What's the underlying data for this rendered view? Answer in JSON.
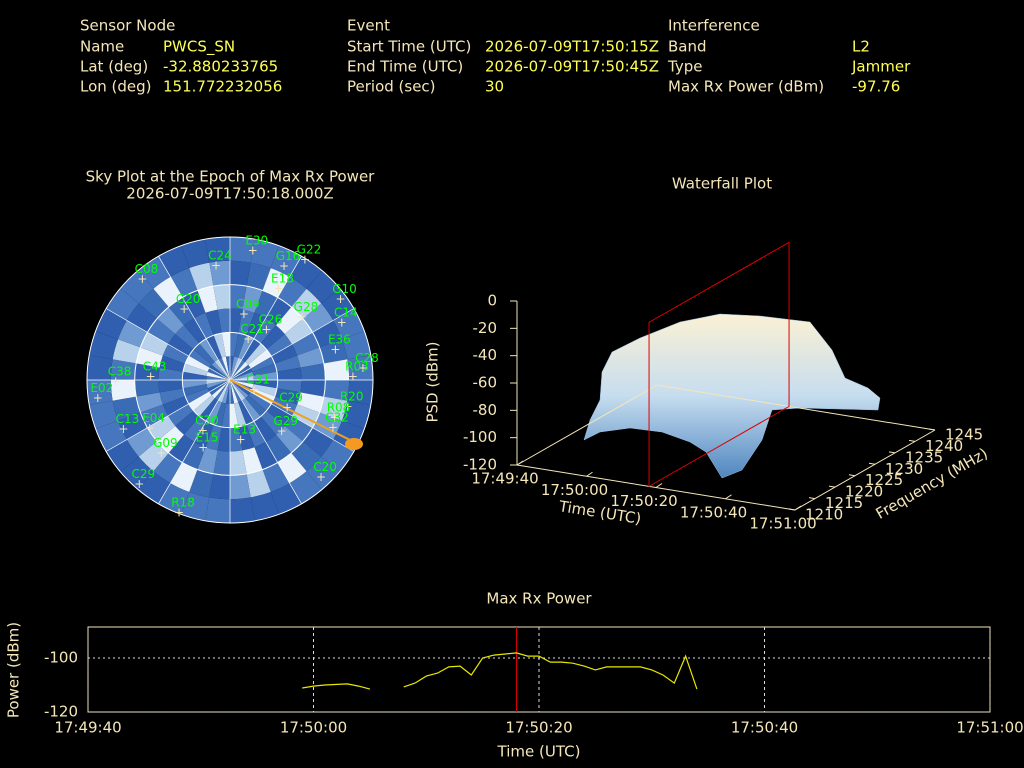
{
  "header": {
    "sensor_node": {
      "title": "Sensor Node",
      "rows": [
        {
          "label": "Name",
          "value": "PWCS_SN"
        },
        {
          "label": "Lat (deg)",
          "value": -32.880233765
        },
        {
          "label": "Lon (deg)",
          "value": 151.772232056
        }
      ]
    },
    "event": {
      "title": "Event",
      "rows": [
        {
          "label": "Start Time (UTC)",
          "value": "2026-07-09T17:50:15Z"
        },
        {
          "label": "End Time (UTC)",
          "value": "2026-07-09T17:50:45Z"
        },
        {
          "label": "Period (sec)",
          "value": 30
        }
      ]
    },
    "interference": {
      "title": "Interference",
      "rows": [
        {
          "label": "Band",
          "value": "L2"
        },
        {
          "label": "Type",
          "value": "Jammer"
        },
        {
          "label": "Max Rx Power (dBm)",
          "value": -97.76
        }
      ]
    }
  },
  "chart_data": [
    {
      "type": "skyplot",
      "title": "Sky Plot at the Epoch of Max Rx Power",
      "subtitle": "2026-07-09T17:50:18.000Z",
      "color": "#00ff00",
      "satellites": [
        {
          "name": "E30",
          "az": 10,
          "el": 7.5
        },
        {
          "name": "G22",
          "az": 32,
          "el": 1
        },
        {
          "name": "G16",
          "az": 25.5,
          "el": 11
        },
        {
          "name": "C24",
          "az": 353,
          "el": 17.6
        },
        {
          "name": "E18",
          "az": 28,
          "el": 25
        },
        {
          "name": "G10",
          "az": 54,
          "el": 4
        },
        {
          "name": "G28",
          "az": 49,
          "el": 30
        },
        {
          "name": "C14",
          "az": 63,
          "el": 11
        },
        {
          "name": "C09",
          "az": 12,
          "el": 48
        },
        {
          "name": "C26",
          "az": 36,
          "el": 51
        },
        {
          "name": "C21",
          "az": 24,
          "el": 62
        },
        {
          "name": "E36",
          "az": 74,
          "el": 21
        },
        {
          "name": "C28",
          "az": 85,
          "el": 6
        },
        {
          "name": "R03",
          "az": 88.6,
          "el": 12.6
        },
        {
          "name": "C31",
          "az": 112.6,
          "el": 73.6
        },
        {
          "name": "R20",
          "az": 103,
          "el": 14
        },
        {
          "name": "R08",
          "az": 110,
          "el": 20
        },
        {
          "name": "C32",
          "az": 115,
          "el": 18.5
        },
        {
          "name": "C29",
          "az": 116,
          "el": 50
        },
        {
          "name": "G29",
          "az": 135,
          "el": 44
        },
        {
          "name": "C20",
          "az": 137,
          "el": 6
        },
        {
          "name": "C30",
          "az": 208,
          "el": 53.7
        },
        {
          "name": "E13",
          "az": 170,
          "el": 51.6
        },
        {
          "name": "E15",
          "az": 201.6,
          "el": 44
        },
        {
          "name": "G09",
          "az": 223,
          "el": 26.7
        },
        {
          "name": "C13",
          "az": 245,
          "el": 16
        },
        {
          "name": "C29",
          "az": 221,
          "el": 3
        },
        {
          "name": "R18",
          "az": 201,
          "el": 0.5
        },
        {
          "name": "C38",
          "az": 269,
          "el": 18
        },
        {
          "name": "C43",
          "az": 272,
          "el": 40
        },
        {
          "name": "E02",
          "az": 262,
          "el": 6
        },
        {
          "name": "E04",
          "az": 239,
          "el": 31
        },
        {
          "name": "C08",
          "az": 319,
          "el": 6
        },
        {
          "name": "G20",
          "az": 327,
          "el": 37
        }
      ]
    },
    {
      "type": "waterfall",
      "title": "Waterfall Plot",
      "xlabel": "Time (UTC)",
      "ylabel": "Frequency (MHz)",
      "zlabel": "PSD (dBm)",
      "xlim": [
        "17:49:40",
        "17:51:00"
      ],
      "xticks": [
        "17:49:40",
        "17:50:00",
        "17:50:20",
        "17:50:40",
        "17:51:00"
      ],
      "ylim": [
        1210,
        1245
      ],
      "yticks": [
        1210,
        1215,
        1220,
        1225,
        1230,
        1235,
        1240,
        1245
      ],
      "zlim": [
        -120,
        0
      ],
      "zticks": [
        0,
        -20,
        -40,
        -60,
        -80,
        -100,
        -120
      ],
      "marker_x": "17:50:18",
      "marker_color": "#dd0000"
    },
    {
      "type": "line",
      "title": "Max Rx Power",
      "xlabel": "Time (UTC)",
      "ylabel": "Power (dBm)",
      "xlim": [
        "17:49:40",
        "17:51:00"
      ],
      "xticks": [
        "17:49:40",
        "17:50:00",
        "17:50:20",
        "17:50:40",
        "17:51:00"
      ],
      "ylim": [
        -120,
        -88.5
      ],
      "yticks": [
        -100,
        -120
      ],
      "grid": true,
      "marker_x": "17:50:18",
      "marker_color": "#dd0000",
      "series": [
        {
          "color": "#e8e800",
          "x": [
            "17:49:59",
            "17:50:00",
            "17:50:01",
            "17:50:03",
            "17:50:04",
            "17:50:05",
            "17:50:07",
            "17:50:08",
            "17:50:09",
            "17:50:10",
            "17:50:11",
            "17:50:12",
            "17:50:13",
            "17:50:14",
            "17:50:15",
            "17:50:16",
            "17:50:18",
            "17:50:19",
            "17:50:20",
            "17:50:21",
            "17:50:22",
            "17:50:23",
            "17:50:24",
            "17:50:25",
            "17:50:26",
            "17:50:28",
            "17:50:29",
            "17:50:30",
            "17:50:31",
            "17:50:32",
            "17:50:33",
            "17:50:34"
          ],
          "values": [
            -111.1,
            -110.4,
            -110.0,
            -109.6,
            -110.4,
            -111.5,
            null,
            -110.7,
            -109.3,
            -106.7,
            -105.6,
            -103.3,
            -103.0,
            -106.3,
            -100.0,
            -98.9,
            -98.1,
            -99.3,
            -99.3,
            -101.5,
            -101.5,
            -101.9,
            -103.0,
            -104.4,
            -103.3,
            -103.3,
            -103.3,
            -104.4,
            -106.3,
            -109.3,
            -99.3,
            -111.5
          ]
        }
      ]
    }
  ]
}
